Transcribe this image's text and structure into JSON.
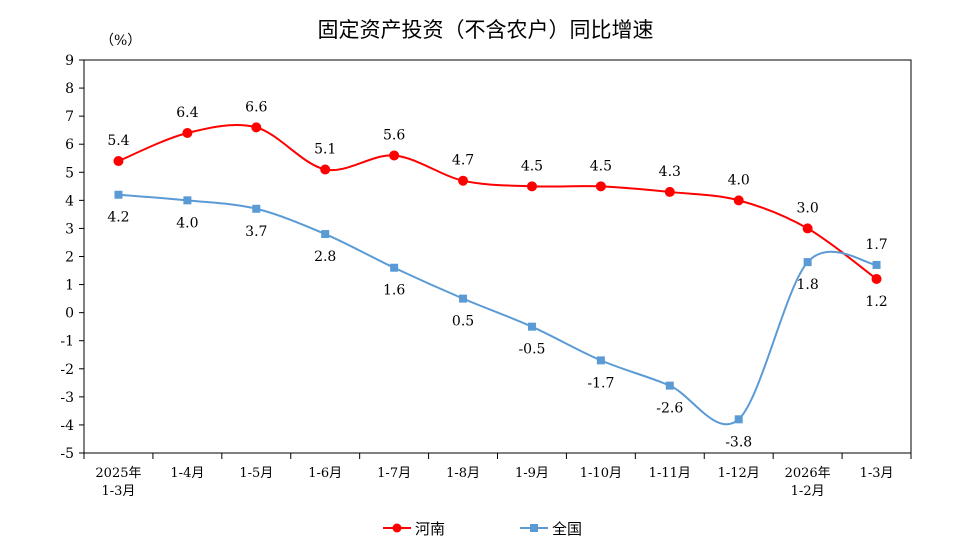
{
  "chart_data": {
    "type": "line",
    "title": "固定资产投资（不含农户）同比增速",
    "ylabel": "（%）",
    "ylim": [
      -5,
      9
    ],
    "yticks": [
      -5,
      -4,
      -3,
      -2,
      -1,
      0,
      1,
      2,
      3,
      4,
      5,
      6,
      7,
      8,
      9
    ],
    "grid": false,
    "smooth": true,
    "legend": "bottom",
    "categories": [
      [
        "2025年",
        "1-3月"
      ],
      [
        "1-4月"
      ],
      [
        "1-5月"
      ],
      [
        "1-6月"
      ],
      [
        "1-7月"
      ],
      [
        "1-8月"
      ],
      [
        "1-9月"
      ],
      [
        "1-10月"
      ],
      [
        "1-11月"
      ],
      [
        "1-12月"
      ],
      [
        "2026年",
        "1-2月"
      ],
      [
        "1-3月"
      ]
    ],
    "series": [
      {
        "name": "河南",
        "color": "#FF0000",
        "marker": "circle",
        "values": [
          5.4,
          6.4,
          6.6,
          5.1,
          5.6,
          4.7,
          4.5,
          4.5,
          4.3,
          4.0,
          3.0,
          1.2
        ]
      },
      {
        "name": "全国",
        "color": "#5B9BD5",
        "marker": "square",
        "values": [
          4.2,
          4.0,
          3.7,
          2.8,
          1.6,
          0.5,
          -0.5,
          -1.7,
          -2.6,
          -3.8,
          1.8,
          1.7
        ]
      }
    ]
  }
}
